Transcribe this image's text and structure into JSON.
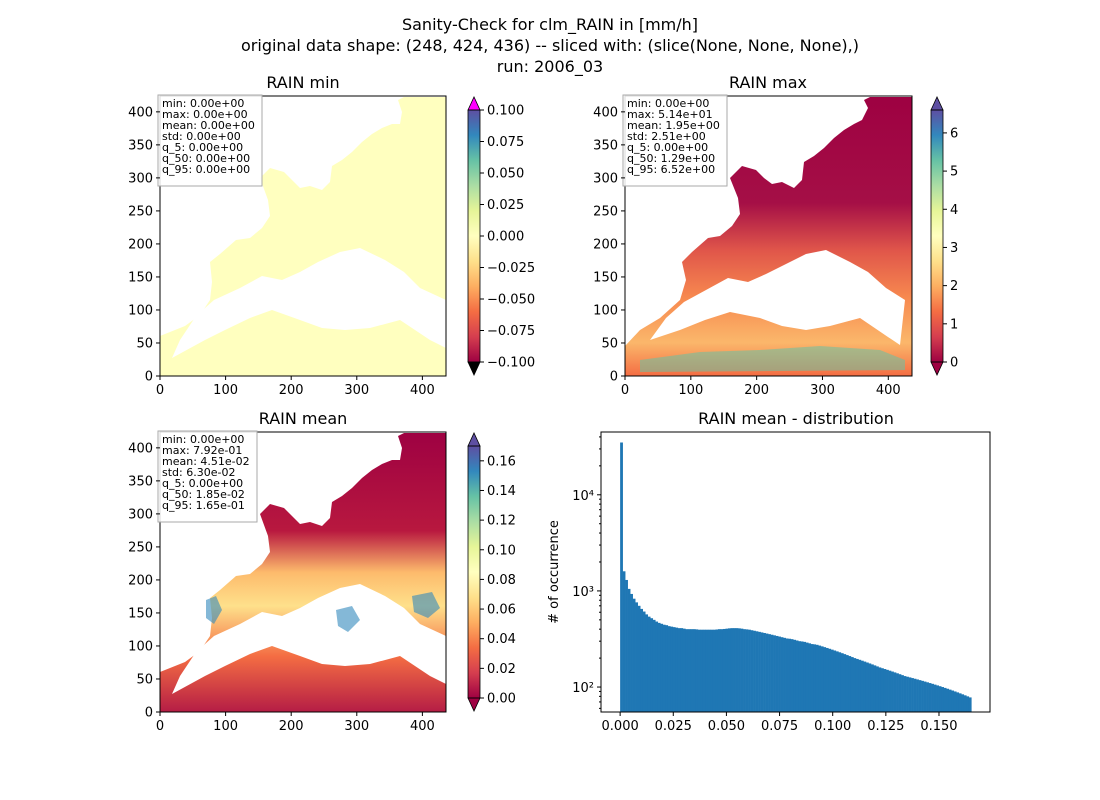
{
  "figure": {
    "suptitle_lines": [
      "Sanity-Check for clm_RAIN in [mm/h]",
      "original data shape: (248, 424, 436) -- sliced with: (slice(None, None, None),)",
      "run: 2006_03"
    ]
  },
  "chart_data": [
    {
      "type": "heatmap",
      "title": "RAIN min",
      "xlim": [
        0,
        436
      ],
      "ylim": [
        0,
        424
      ],
      "x_ticks": [
        "0",
        "100",
        "200",
        "300",
        "400"
      ],
      "y_ticks": [
        "0",
        "50",
        "100",
        "150",
        "200",
        "250",
        "300",
        "350",
        "400"
      ],
      "colormap": "Spectral",
      "colorbar": {
        "range": [
          -0.1,
          0.1
        ],
        "extend": "both",
        "over_color": "#ff00ff",
        "under_color": "#000000",
        "ticks": [
          "−0.100",
          "−0.075",
          "−0.050",
          "−0.025",
          "0.000",
          "0.025",
          "0.050",
          "0.075",
          "0.100"
        ]
      },
      "stats": [
        "min: 0.00e+00",
        "max: 0.00e+00",
        "mean: 0.00e+00",
        "std: 0.00e+00",
        "q_5: 0.00e+00",
        "q_50: 0.00e+00",
        "q_95: 0.00e+00"
      ]
    },
    {
      "type": "heatmap",
      "title": "RAIN max",
      "xlim": [
        0,
        436
      ],
      "ylim": [
        0,
        424
      ],
      "x_ticks": [
        "0",
        "100",
        "200",
        "300",
        "400"
      ],
      "y_ticks": [
        "0",
        "50",
        "100",
        "150",
        "200",
        "250",
        "300",
        "350",
        "400"
      ],
      "colormap": "Spectral",
      "colorbar": {
        "range": [
          0,
          6.6
        ],
        "extend": "both",
        "ticks": [
          "0",
          "1",
          "2",
          "3",
          "4",
          "5",
          "6"
        ]
      },
      "stats": [
        "min: 0.00e+00",
        "max: 5.14e+01",
        "mean: 1.95e+00",
        "std: 2.51e+00",
        "q_5: 0.00e+00",
        "q_50: 1.29e+00",
        "q_95: 6.52e+00"
      ]
    },
    {
      "type": "heatmap",
      "title": "RAIN mean",
      "xlim": [
        0,
        436
      ],
      "ylim": [
        0,
        424
      ],
      "x_ticks": [
        "0",
        "100",
        "200",
        "300",
        "400"
      ],
      "y_ticks": [
        "0",
        "50",
        "100",
        "150",
        "200",
        "250",
        "300",
        "350",
        "400"
      ],
      "colormap": "Spectral",
      "colorbar": {
        "range": [
          0,
          0.17
        ],
        "extend": "both",
        "ticks": [
          "0.00",
          "0.02",
          "0.04",
          "0.06",
          "0.08",
          "0.10",
          "0.12",
          "0.14",
          "0.16"
        ]
      },
      "stats": [
        "min: 0.00e+00",
        "max: 7.92e-01",
        "mean: 4.51e-02",
        "std: 6.30e-02",
        "q_5: 0.00e+00",
        "q_50: 1.85e-02",
        "q_95: 1.65e-01"
      ]
    },
    {
      "type": "bar",
      "title": "RAIN mean - distribution",
      "xlabel": "",
      "ylabel": "# of occurrence",
      "xlim": [
        -0.009,
        0.174
      ],
      "ylim": [
        55,
        45000
      ],
      "y_scale": "log",
      "bar_color": "#1f77b4",
      "x_ticks": [
        "0.000",
        "0.025",
        "0.050",
        "0.075",
        "0.100",
        "0.125",
        "0.150"
      ],
      "y_ticks": [
        "10²",
        "10³",
        "10⁴"
      ],
      "histogram": {
        "bin_start": 0.0,
        "bin_width": 0.00118,
        "counts": [
          35000,
          1600,
          1300,
          1050,
          930,
          830,
          760,
          700,
          650,
          610,
          570,
          540,
          520,
          500,
          480,
          465,
          455,
          445,
          440,
          430,
          425,
          420,
          415,
          410,
          410,
          405,
          400,
          400,
          400,
          400,
          398,
          395,
          395,
          395,
          395,
          395,
          395,
          395,
          397,
          400,
          400,
          402,
          405,
          408,
          410,
          410,
          410,
          408,
          405,
          400,
          398,
          395,
          390,
          385,
          380,
          375,
          370,
          365,
          360,
          355,
          350,
          345,
          340,
          335,
          330,
          325,
          320,
          318,
          315,
          310,
          305,
          300,
          298,
          295,
          290,
          285,
          280,
          278,
          275,
          270,
          265,
          260,
          255,
          250,
          245,
          240,
          235,
          230,
          225,
          220,
          215,
          210,
          205,
          200,
          196,
          192,
          188,
          184,
          180,
          176,
          172,
          168,
          164,
          160,
          157,
          154,
          151,
          148,
          145,
          142,
          139,
          136,
          133,
          130,
          128,
          126,
          124,
          122,
          120,
          118,
          116,
          114,
          112,
          110,
          108,
          106,
          104,
          102,
          100,
          98,
          96,
          94,
          92,
          90,
          88,
          86,
          84,
          82,
          80,
          78
        ]
      }
    }
  ]
}
